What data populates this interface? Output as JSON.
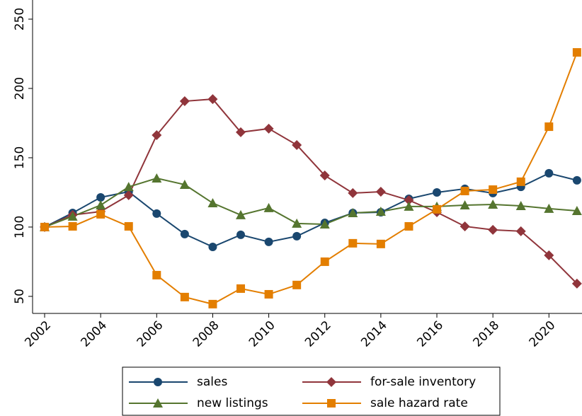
{
  "chart_data": {
    "type": "line",
    "x": [
      2002,
      2003,
      2004,
      2005,
      2006,
      2007,
      2008,
      2009,
      2010,
      2011,
      2012,
      2013,
      2014,
      2015,
      2016,
      2017,
      2018,
      2019,
      2020,
      2021
    ],
    "series": [
      {
        "name": "sales",
        "color": "#1a476f",
        "marker": "circle",
        "values": [
          100,
          110.2,
          121.4,
          125.5,
          109.7,
          94.9,
          85.7,
          94.4,
          89.3,
          93.4,
          103,
          110.2,
          110.7,
          120.4,
          125,
          127.6,
          124.5,
          129,
          138.8,
          133.7
        ]
      },
      {
        "name": "for-sale inventory",
        "color": "#90353b",
        "marker": "diamond",
        "values": [
          100,
          108.7,
          111.2,
          123,
          166.3,
          190.8,
          192.3,
          168.4,
          171,
          159.2,
          137.2,
          124.5,
          125.5,
          119.4,
          110.7,
          100.5,
          98,
          97,
          79.6,
          59.2
        ]
      },
      {
        "name": "new listings",
        "color": "#55752f",
        "marker": "triangle",
        "values": [
          100,
          107.7,
          115.8,
          129,
          135.2,
          130.6,
          117.3,
          108.7,
          113.8,
          102.6,
          102,
          110.2,
          111.2,
          114.8,
          114.8,
          115.8,
          116.3,
          115.3,
          113.3,
          111.7
        ]
      },
      {
        "name": "sale hazard rate",
        "color": "#e37e00",
        "marker": "square",
        "values": [
          100,
          100.5,
          109.2,
          100.5,
          65.3,
          49.5,
          44.4,
          55.6,
          51.5,
          58.2,
          75,
          88.3,
          87.8,
          100.5,
          112.8,
          126,
          127,
          132.7,
          172.4,
          226
        ]
      }
    ],
    "xlim": [
      2001.57,
      2021.18
    ],
    "xticks": [
      2002,
      2004,
      2006,
      2008,
      2010,
      2012,
      2014,
      2016,
      2018,
      2020
    ],
    "ylim": [
      37.7,
      263.8
    ],
    "yticks": [
      50,
      100,
      150,
      200,
      250
    ],
    "grid": false,
    "legend": "bottom"
  }
}
